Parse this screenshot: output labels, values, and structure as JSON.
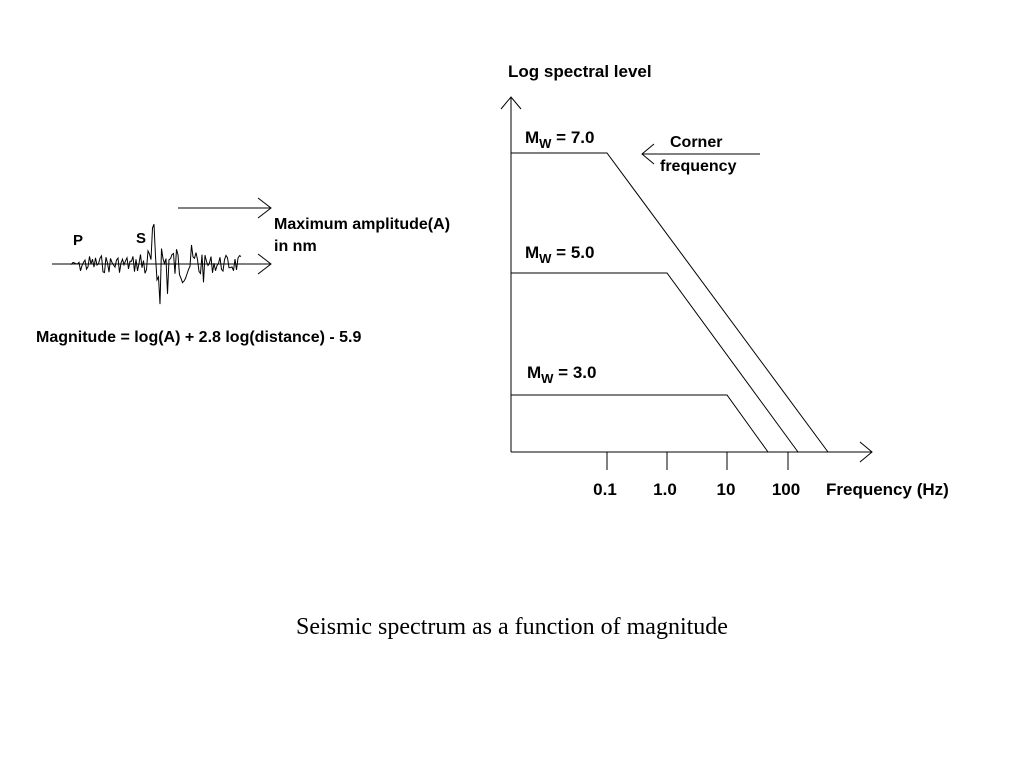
{
  "seismogram": {
    "p_label": "P",
    "s_label": "S",
    "amplitude_label_line1": "Maximum amplitude(A)",
    "amplitude_label_line2": "in nm",
    "formula": "Magnitude = log(A) + 2.8 log(distance) -  5.9"
  },
  "spectrum": {
    "y_axis_label": "Log spectral level",
    "x_axis_label": "Frequency (Hz)",
    "x_ticks": [
      "0.1",
      "1.0",
      "10",
      "100"
    ],
    "corner_label_line1": "Corner",
    "corner_label_line2": "frequency",
    "curves": [
      {
        "m_symbol": "M",
        "subscript": "W",
        "value_text": " = 7.0",
        "magnitude": 7.0,
        "corner_frequency_hz": 0.1
      },
      {
        "m_symbol": "M",
        "subscript": "W",
        "value_text": " = 5.0",
        "magnitude": 5.0,
        "corner_frequency_hz": 1.0
      },
      {
        "m_symbol": "M",
        "subscript": "W",
        "value_text": " = 3.0",
        "magnitude": 3.0,
        "corner_frequency_hz": 10
      }
    ]
  },
  "caption": "Seismic spectrum as a function of magnitude",
  "colors": {
    "ink": "#000000",
    "background": "#ffffff"
  }
}
